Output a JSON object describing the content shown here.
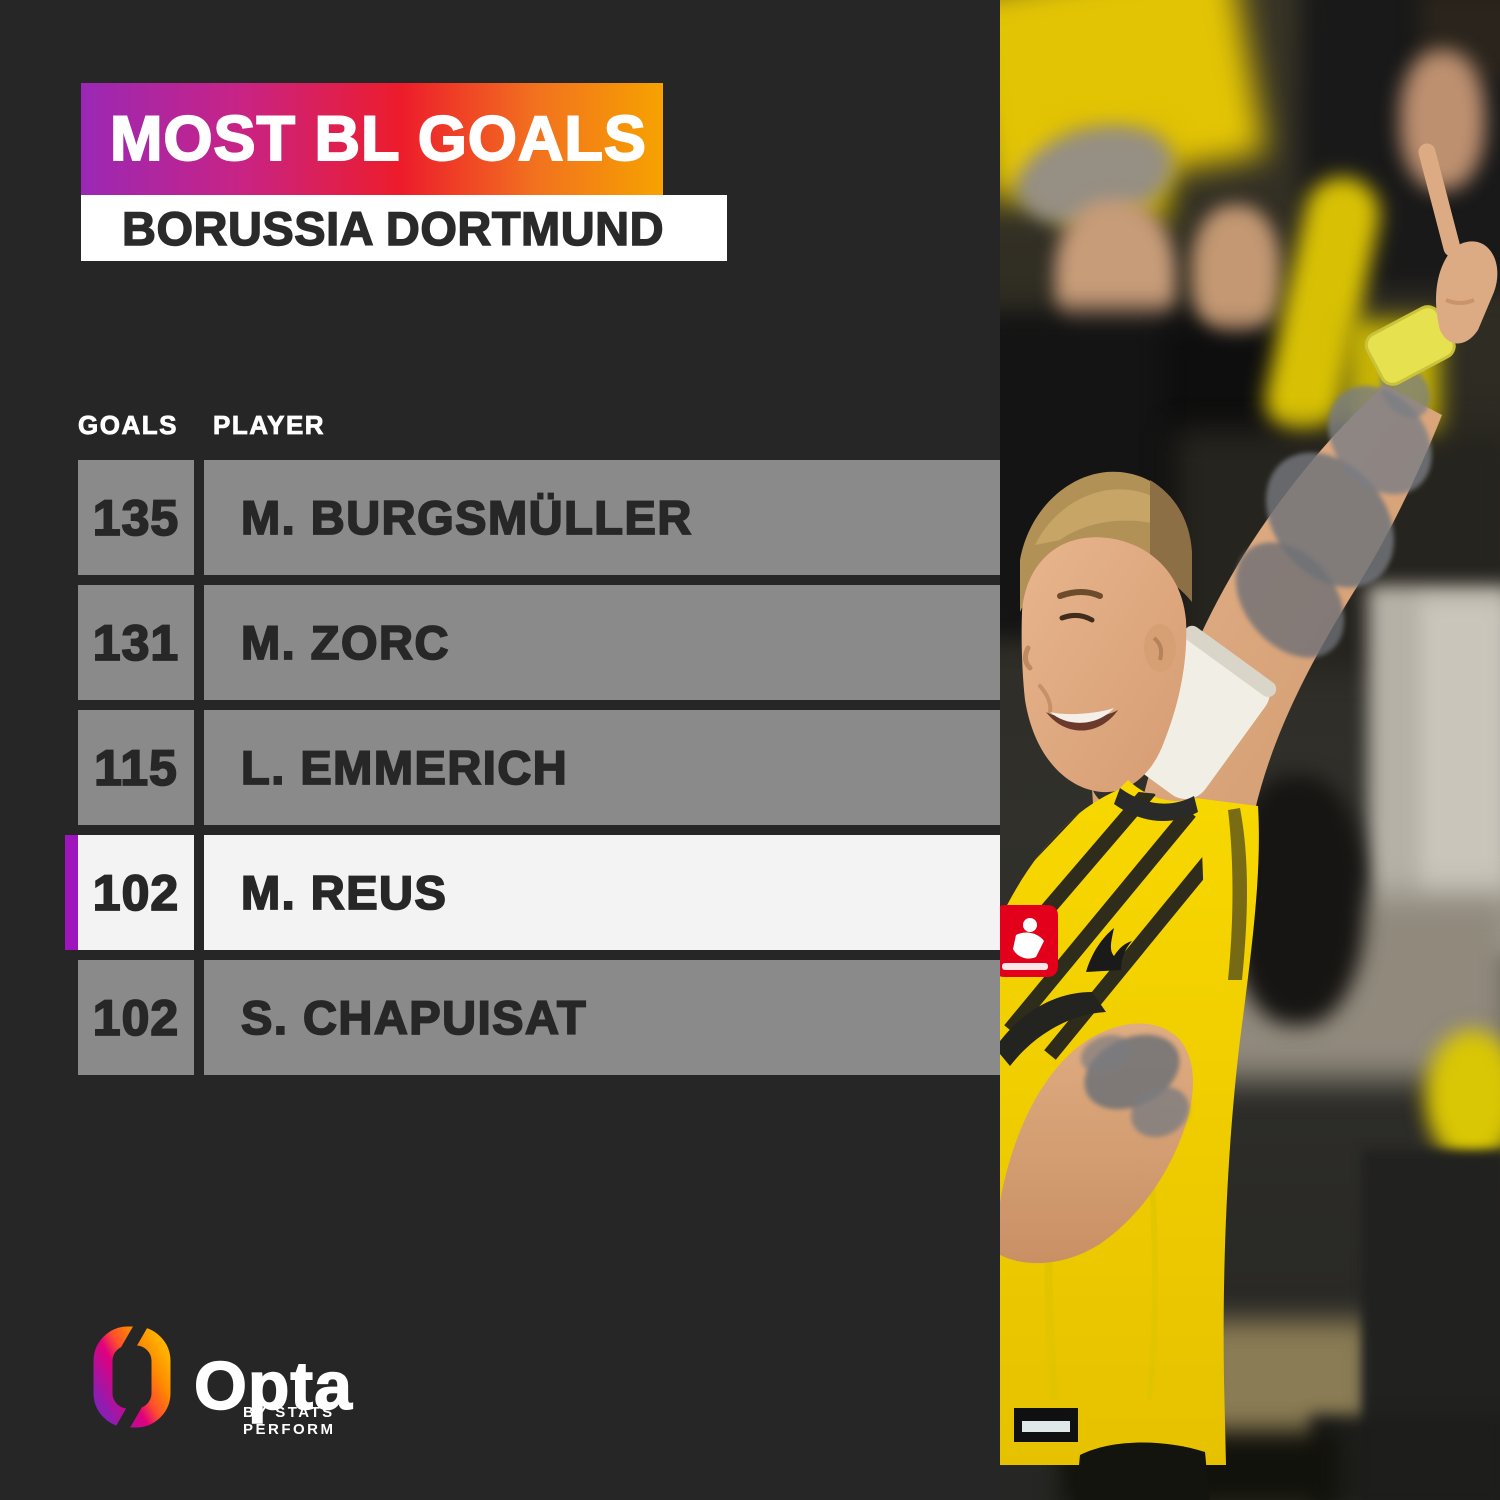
{
  "header": {
    "title": "MOST BL GOALS",
    "subtitle": "BORUSSIA DORTMUND"
  },
  "branding": {
    "logo_text": "Opta",
    "byline": "BY STATS PERFORM"
  },
  "colors": {
    "background": "#262626",
    "banner_gradient_start": "#9A28B5",
    "banner_gradient_mid": "#ED1C2B",
    "banner_gradient_end": "#F6A200",
    "subtitle_bar": "#FFFFFF",
    "row_gray": "#8A8A8A",
    "row_highlight": "#F3F3F3",
    "highlight_strip_purple": "#9E15BD",
    "row_text": "#272727",
    "header_text": "#FFFFFF",
    "bvb_yellow": "#F6D500"
  },
  "chart_data": {
    "type": "table",
    "title": "MOST BL GOALS",
    "subtitle": "BORUSSIA DORTMUND",
    "columns": [
      "GOALS",
      "PLAYER"
    ],
    "rows": [
      {
        "goals": 135,
        "player": "M. BURGSMÜLLER",
        "highlighted": false
      },
      {
        "goals": 131,
        "player": "M. ZORC",
        "highlighted": false
      },
      {
        "goals": 115,
        "player": "L. EMMERICH",
        "highlighted": false
      },
      {
        "goals": 102,
        "player": "M. REUS",
        "highlighted": true
      },
      {
        "goals": 102,
        "player": "S. CHAPUISAT",
        "highlighted": false
      }
    ],
    "legend": "highlighted row indicates M. Reus"
  }
}
